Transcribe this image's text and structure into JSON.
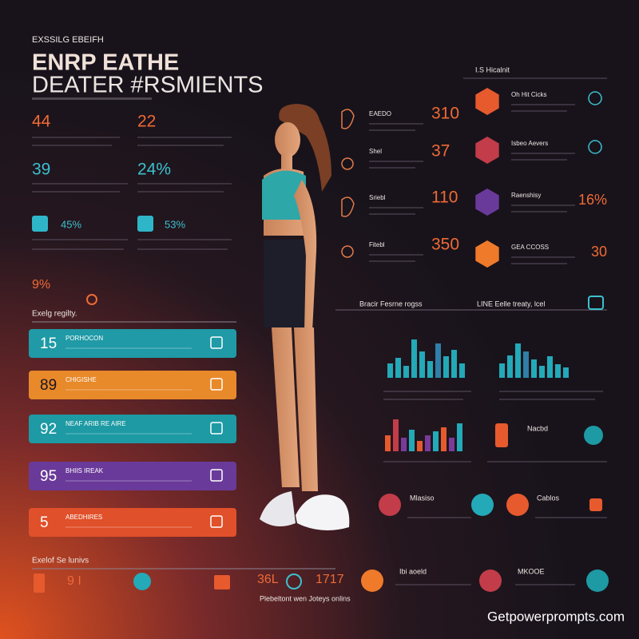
{
  "header": {
    "kicker": "EXSSILG EBEIFH",
    "title_line1": "ENRP EATHE",
    "title_line2": "DEATER #RSMIENTS"
  },
  "stats": [
    "44",
    "22",
    "39",
    "24%",
    "45%",
    "53%",
    "9%"
  ],
  "section_label": "Exelg regilty.",
  "bars": [
    {
      "value": "15",
      "label": "PORHOCON"
    },
    {
      "value": "89",
      "label": "CHIGISHE"
    },
    {
      "value": "92",
      "label": "NEAF ARIB RE AIRE"
    },
    {
      "value": "95",
      "label": "BHIIS IREAK"
    },
    {
      "value": "5",
      "label": "ABEDHIRES"
    }
  ],
  "metrics": [
    {
      "label": "EAEDO",
      "value": "310"
    },
    {
      "label": "Shel",
      "value": "37"
    },
    {
      "label": "Sriebl",
      "value": "110"
    },
    {
      "label": "Fitebl",
      "value": "350"
    }
  ],
  "icon_list": {
    "header": "I.S Hicalnit",
    "items": [
      {
        "label": "Oh Hit Cicks"
      },
      {
        "label": "Isbeo Aevers"
      },
      {
        "label": "Raenshisy",
        "value": "16%"
      },
      {
        "label": "GEA CCOSS",
        "value": "30"
      }
    ]
  },
  "charts": {
    "left_title": "Bracir Fesrne rogss",
    "right_title": "LINE Eelle treaty, lcel"
  },
  "features": [
    "Nacbd",
    "Mlasiso",
    "Cablos",
    "Ibi aoeld",
    "MKOOE"
  ],
  "bottom": {
    "label": "Exelof Se lunivs",
    "numbers": [
      "9 I",
      "36L",
      "1717"
    ],
    "caption": "Plebeltont wen Joteys onlins"
  },
  "watermark": "Getpowerprompts.com"
}
